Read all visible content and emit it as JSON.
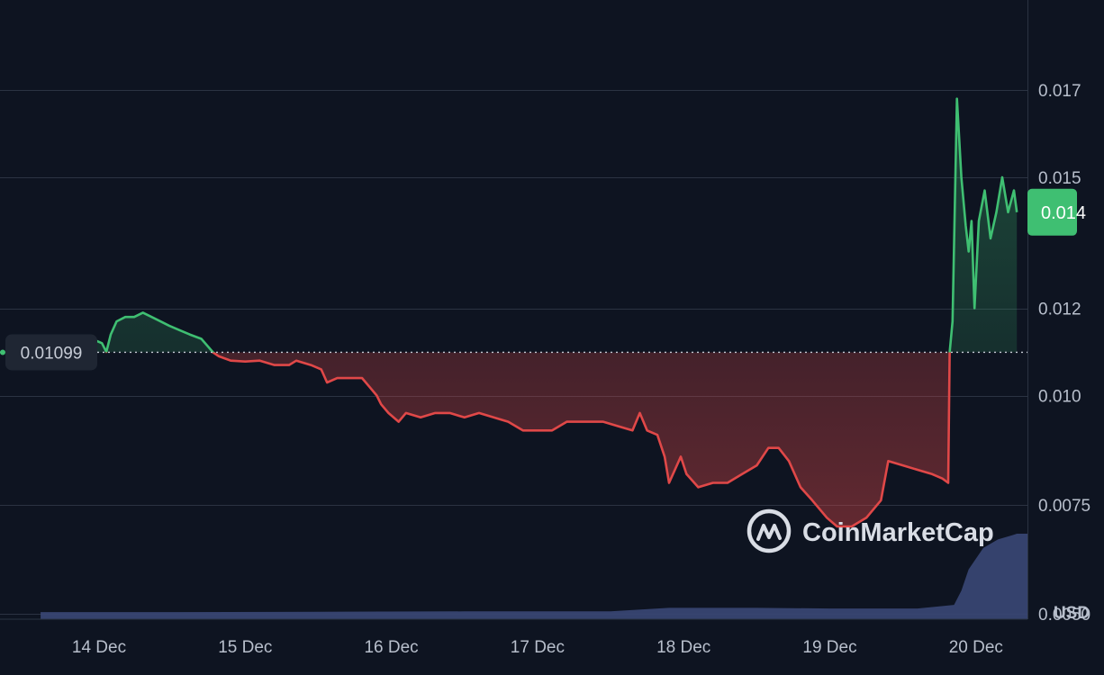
{
  "chart_data": {
    "type": "area",
    "currency_label": "USD",
    "watermark": "CoinMarketCap",
    "reference_value": 0.01099,
    "reference_label": "0.01099",
    "current_label": "0.014",
    "current_value": 0.0142,
    "y_ticks": [
      {
        "value": 0.017,
        "label": "0.017"
      },
      {
        "value": 0.015,
        "label": "0.015"
      },
      {
        "value": 0.012,
        "label": "0.012"
      },
      {
        "value": 0.01,
        "label": "0.010"
      },
      {
        "value": 0.0075,
        "label": "0.0075"
      },
      {
        "value": 0.005,
        "label": "0.0050"
      }
    ],
    "x_ticks": [
      "14 Dec",
      "15 Dec",
      "16 Dec",
      "17 Dec",
      "18 Dec",
      "19 Dec",
      "20 Dec"
    ],
    "grid": true,
    "colors": {
      "up": "#3fbf72",
      "down": "#e04848",
      "volume": "#3a4775",
      "background": "#0e1421",
      "current_badge": "#3fbf72"
    },
    "series": [
      {
        "points": [
          [
            13.6,
            0.01099
          ],
          [
            13.72,
            0.0112
          ],
          [
            13.8,
            0.0113
          ],
          [
            13.88,
            0.0112
          ],
          [
            13.95,
            0.0113
          ],
          [
            14.02,
            0.0112
          ],
          [
            14.05,
            0.011
          ],
          [
            14.08,
            0.0114
          ],
          [
            14.12,
            0.0117
          ],
          [
            14.18,
            0.0118
          ],
          [
            14.24,
            0.0118
          ],
          [
            14.3,
            0.0119
          ],
          [
            14.36,
            0.0118
          ],
          [
            14.42,
            0.0117
          ],
          [
            14.48,
            0.0116
          ],
          [
            14.55,
            0.0115
          ],
          [
            14.62,
            0.0114
          ],
          [
            14.7,
            0.0113
          ],
          [
            14.78,
            0.01099
          ],
          [
            14.82,
            0.0109
          ],
          [
            14.9,
            0.0108
          ],
          [
            15.0,
            0.01078
          ],
          [
            15.1,
            0.0108
          ],
          [
            15.2,
            0.0107
          ],
          [
            15.3,
            0.0107
          ],
          [
            15.35,
            0.0108
          ],
          [
            15.45,
            0.0107
          ],
          [
            15.52,
            0.0106
          ],
          [
            15.56,
            0.0103
          ],
          [
            15.63,
            0.0104
          ],
          [
            15.72,
            0.0104
          ],
          [
            15.8,
            0.0104
          ],
          [
            15.85,
            0.0102
          ],
          [
            15.9,
            0.01
          ],
          [
            15.93,
            0.0098
          ],
          [
            15.98,
            0.0096
          ],
          [
            16.05,
            0.0094
          ],
          [
            16.1,
            0.0096
          ],
          [
            16.2,
            0.0095
          ],
          [
            16.3,
            0.0096
          ],
          [
            16.4,
            0.0096
          ],
          [
            16.5,
            0.0095
          ],
          [
            16.6,
            0.0096
          ],
          [
            16.7,
            0.0095
          ],
          [
            16.8,
            0.0094
          ],
          [
            16.9,
            0.0092
          ],
          [
            17.0,
            0.0092
          ],
          [
            17.1,
            0.0092
          ],
          [
            17.2,
            0.0094
          ],
          [
            17.3,
            0.0094
          ],
          [
            17.45,
            0.0094
          ],
          [
            17.55,
            0.0093
          ],
          [
            17.65,
            0.0092
          ],
          [
            17.7,
            0.0096
          ],
          [
            17.75,
            0.0092
          ],
          [
            17.82,
            0.0091
          ],
          [
            17.87,
            0.0086
          ],
          [
            17.9,
            0.008
          ],
          [
            17.94,
            0.0083
          ],
          [
            17.98,
            0.0086
          ],
          [
            18.02,
            0.0082
          ],
          [
            18.1,
            0.0079
          ],
          [
            18.2,
            0.008
          ],
          [
            18.3,
            0.008
          ],
          [
            18.4,
            0.0082
          ],
          [
            18.5,
            0.0084
          ],
          [
            18.58,
            0.0088
          ],
          [
            18.65,
            0.0088
          ],
          [
            18.72,
            0.0085
          ],
          [
            18.8,
            0.0079
          ],
          [
            18.88,
            0.0076
          ],
          [
            18.98,
            0.0072
          ],
          [
            19.05,
            0.007
          ],
          [
            19.15,
            0.007
          ],
          [
            19.25,
            0.0072
          ],
          [
            19.35,
            0.0076
          ],
          [
            19.4,
            0.0085
          ],
          [
            19.5,
            0.0084
          ],
          [
            19.6,
            0.0083
          ],
          [
            19.7,
            0.0082
          ],
          [
            19.77,
            0.0081
          ],
          [
            19.81,
            0.008
          ],
          [
            19.82,
            0.01099
          ],
          [
            19.84,
            0.0117
          ],
          [
            19.87,
            0.0168
          ],
          [
            19.9,
            0.015
          ],
          [
            19.93,
            0.0139
          ],
          [
            19.95,
            0.0133
          ],
          [
            19.97,
            0.014
          ],
          [
            19.99,
            0.012
          ],
          [
            20.02,
            0.014
          ],
          [
            20.06,
            0.0147
          ],
          [
            20.1,
            0.0136
          ],
          [
            20.14,
            0.0142
          ],
          [
            20.18,
            0.015
          ],
          [
            20.22,
            0.0142
          ],
          [
            20.26,
            0.0147
          ],
          [
            20.28,
            0.0142
          ]
        ]
      }
    ],
    "volume": [
      [
        13.6,
        0.5
      ],
      [
        14.5,
        0.5
      ],
      [
        15.5,
        0.52
      ],
      [
        16.5,
        0.55
      ],
      [
        17.5,
        0.55
      ],
      [
        17.9,
        0.8
      ],
      [
        18.5,
        0.8
      ],
      [
        19.0,
        0.75
      ],
      [
        19.6,
        0.75
      ],
      [
        19.85,
        1.0
      ],
      [
        19.9,
        2.0
      ],
      [
        19.95,
        3.5
      ],
      [
        20.05,
        5.0
      ],
      [
        20.15,
        5.6
      ],
      [
        20.25,
        5.9
      ],
      [
        20.28,
        6.0
      ]
    ]
  }
}
